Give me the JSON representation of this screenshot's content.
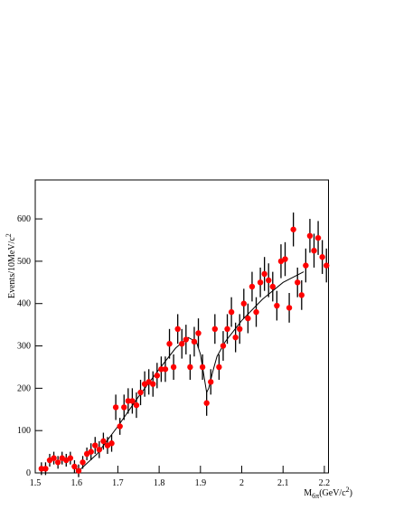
{
  "chart_data": {
    "type": "scatter",
    "xlabel": [
      "M",
      "6π",
      "(GeV/c",
      "2",
      ")"
    ],
    "ylabel": [
      "Events/10MeV/c",
      "2"
    ],
    "xlim": [
      1.5,
      2.21
    ],
    "ylim": [
      0,
      692
    ],
    "xticks": [
      1.5,
      1.6,
      1.7,
      1.8,
      1.9,
      2,
      2.1,
      2.2
    ],
    "yticks": [
      0,
      100,
      200,
      300,
      400,
      500,
      600
    ],
    "color": "#ff0000",
    "error_color": "#000000",
    "x": [
      1.515,
      1.525,
      1.535,
      1.545,
      1.555,
      1.565,
      1.575,
      1.585,
      1.595,
      1.605,
      1.615,
      1.625,
      1.635,
      1.645,
      1.655,
      1.665,
      1.675,
      1.685,
      1.695,
      1.705,
      1.715,
      1.725,
      1.735,
      1.745,
      1.755,
      1.765,
      1.775,
      1.785,
      1.795,
      1.805,
      1.815,
      1.825,
      1.835,
      1.845,
      1.855,
      1.865,
      1.875,
      1.885,
      1.895,
      1.905,
      1.915,
      1.925,
      1.935,
      1.945,
      1.955,
      1.965,
      1.975,
      1.985,
      1.995,
      2.005,
      2.015,
      2.025,
      2.035,
      2.045,
      2.055,
      2.065,
      2.075,
      2.085,
      2.095,
      2.105,
      2.115,
      2.125,
      2.135,
      2.145,
      2.155,
      2.165,
      2.175,
      2.185,
      2.195,
      2.205
    ],
    "values": [
      10,
      10,
      30,
      35,
      25,
      35,
      30,
      35,
      15,
      5,
      25,
      45,
      50,
      65,
      55,
      75,
      65,
      70,
      155,
      110,
      155,
      170,
      170,
      160,
      190,
      210,
      215,
      210,
      230,
      245,
      245,
      305,
      250,
      340,
      305,
      315,
      250,
      310,
      330,
      250,
      165,
      215,
      340,
      250,
      300,
      340,
      380,
      320,
      340,
      400,
      365,
      440,
      380,
      450,
      470,
      455,
      440,
      395,
      500,
      505,
      390,
      575,
      450,
      420,
      490,
      560,
      525,
      555,
      510,
      490
    ],
    "errors": [
      15,
      15,
      15,
      15,
      15,
      15,
      15,
      15,
      15,
      15,
      15,
      15,
      20,
      20,
      20,
      20,
      20,
      20,
      30,
      20,
      30,
      30,
      30,
      30,
      30,
      30,
      30,
      30,
      30,
      30,
      30,
      35,
      30,
      35,
      35,
      35,
      30,
      35,
      35,
      30,
      30,
      30,
      35,
      30,
      35,
      35,
      35,
      35,
      35,
      35,
      35,
      35,
      35,
      35,
      40,
      40,
      35,
      35,
      40,
      40,
      35,
      40,
      35,
      35,
      40,
      40,
      40,
      40,
      40,
      40
    ],
    "fit": {
      "color": "#000000",
      "x": [
        1.6,
        1.65,
        1.7,
        1.75,
        1.8,
        1.84,
        1.87,
        1.89,
        1.9,
        1.91,
        1.915,
        1.92,
        1.93,
        1.94,
        1.96,
        2.0,
        2.05,
        2.1,
        2.15
      ],
      "y": [
        0,
        45,
        110,
        180,
        245,
        295,
        320,
        310,
        280,
        220,
        190,
        200,
        240,
        275,
        310,
        360,
        410,
        450,
        475
      ]
    }
  }
}
